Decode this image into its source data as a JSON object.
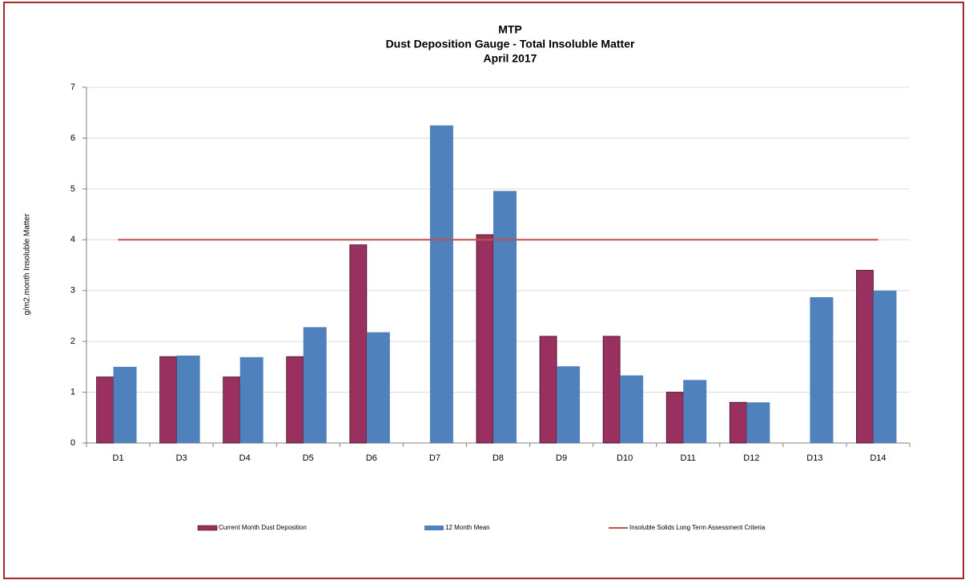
{
  "chart_data": {
    "type": "bar",
    "title": [
      "MTP",
      "Dust Deposition Gauge - Total Insoluble Matter",
      "April 2017"
    ],
    "y_label": "g/m2.month Insoluble Matter",
    "categories": [
      "D1",
      "D3",
      "D4",
      "D5",
      "D6",
      "D7",
      "D8",
      "D9",
      "D10",
      "D11",
      "D12",
      "D13",
      "D14"
    ],
    "series": [
      {
        "name": "Current Month Dust Deposition",
        "type": "bar",
        "color": "#993060",
        "values": [
          1.3,
          1.7,
          1.3,
          1.7,
          3.9,
          null,
          4.1,
          2.1,
          2.1,
          1.0,
          0.8,
          null,
          3.4
        ]
      },
      {
        "name": "12 Month Mean",
        "type": "bar",
        "color": "#4f81bd",
        "values": [
          1.5,
          1.72,
          1.69,
          2.28,
          2.18,
          6.25,
          4.96,
          1.51,
          1.33,
          1.24,
          0.8,
          2.87,
          3.0
        ]
      },
      {
        "name": "Insoluble Solids Long Term Assessment Criteria",
        "type": "line",
        "color": "#c0504d",
        "values": [
          4,
          4,
          4,
          4,
          4,
          4,
          4,
          4,
          4,
          4,
          4,
          4,
          4
        ]
      }
    ],
    "ylim": [
      0,
      7
    ],
    "yticks": [
      0,
      1,
      2,
      3,
      4,
      5,
      6,
      7
    ],
    "grid": true,
    "legend": "bottom"
  }
}
